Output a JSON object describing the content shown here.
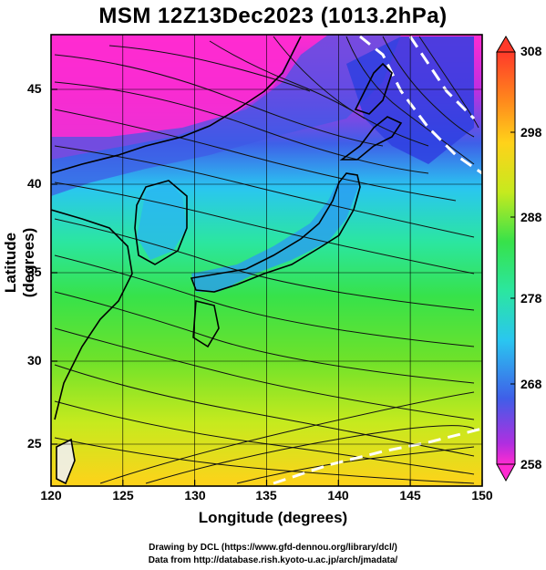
{
  "title": "MSM 12Z13Dec2023 (1013.2hPa)",
  "axes": {
    "xlabel": "Longitude (degrees)",
    "ylabel": "Latitude  (degrees)",
    "lon_ticks": [
      "120",
      "125",
      "130",
      "135",
      "140",
      "145",
      "150"
    ],
    "lat_ticks": [
      "45",
      "40",
      "35",
      "30",
      "25"
    ]
  },
  "colorbar": {
    "ticks": [
      "308",
      "298",
      "288",
      "278",
      "268",
      "258"
    ]
  },
  "credits": {
    "line1": "Drawing by DCL (https://www.gfd-dennou.org/library/dcl/)",
    "line2": "Data from http://database.rish.kyoto-u.ac.jp/arch/jmadata/"
  }
}
